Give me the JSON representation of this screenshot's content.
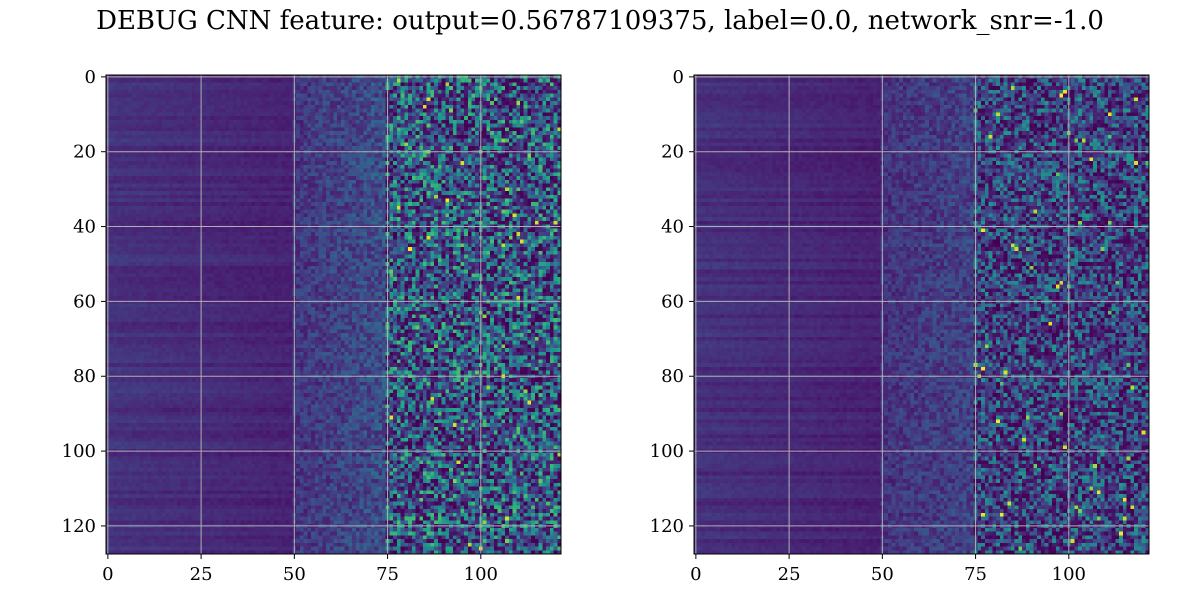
{
  "figure": {
    "title": "DEBUG CNN feature: output=0.56787109375, label=0.0, network_snr=-1.0"
  },
  "chart_data": [
    {
      "type": "heatmap",
      "title": "",
      "xlabel": "",
      "ylabel": "",
      "n_cols": 122,
      "n_rows": 128,
      "xlim": [
        -0.5,
        121.5
      ],
      "ylim": [
        127.5,
        -0.5
      ],
      "y_inverted": true,
      "colormap": "viridis",
      "grid": true,
      "grid_color": "#b0b0b0",
      "x_ticks": [
        0,
        25,
        50,
        75,
        100
      ],
      "x_tick_labels": [
        "0",
        "25",
        "50",
        "75",
        "100"
      ],
      "y_ticks": [
        0,
        20,
        40,
        60,
        80,
        100,
        120
      ],
      "y_tick_labels": [
        "0",
        "20",
        "40",
        "60",
        "80",
        "100",
        "120"
      ],
      "column_profile": {
        "description_of_values": "typical normalized intensity by column range",
        "col_0_to_50_mean": 0.14,
        "col_50_to_75_mean": 0.22,
        "col_75_to_122_mean": 0.32,
        "bright_outlier_max": 1.0
      }
    },
    {
      "type": "heatmap",
      "title": "",
      "xlabel": "",
      "ylabel": "",
      "n_cols": 122,
      "n_rows": 128,
      "xlim": [
        -0.5,
        121.5
      ],
      "ylim": [
        127.5,
        -0.5
      ],
      "y_inverted": true,
      "colormap": "viridis",
      "grid": true,
      "grid_color": "#b0b0b0",
      "x_ticks": [
        0,
        25,
        50,
        75,
        100
      ],
      "x_tick_labels": [
        "0",
        "25",
        "50",
        "75",
        "100"
      ],
      "y_ticks": [
        0,
        20,
        40,
        60,
        80,
        100,
        120
      ],
      "y_tick_labels": [
        "0",
        "20",
        "40",
        "60",
        "80",
        "100",
        "120"
      ],
      "column_profile": {
        "description_of_values": "typical normalized intensity by column range",
        "col_0_to_50_mean": 0.13,
        "col_50_to_75_mean": 0.18,
        "col_75_to_122_mean": 0.24,
        "bright_outlier_max": 1.0
      }
    }
  ]
}
